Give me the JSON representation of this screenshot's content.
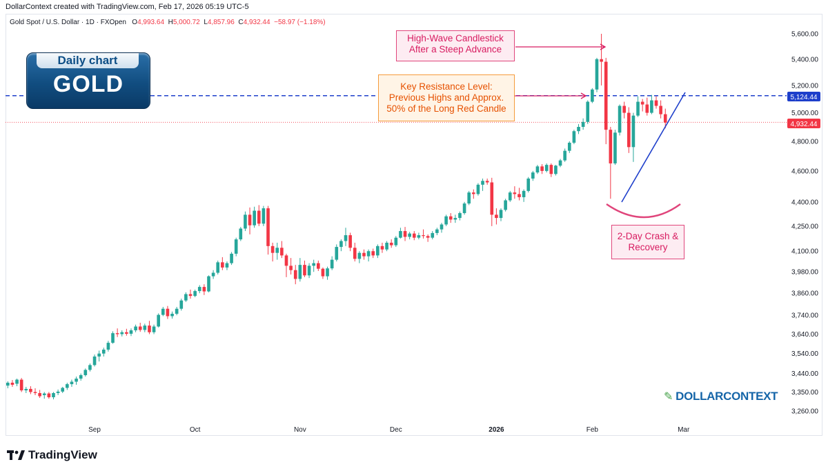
{
  "meta": {
    "created_by": "DollarContext created with TradingView.com, Feb 17, 2026 05:19 UTC-5"
  },
  "header": {
    "symbol": "Gold Spot / U.S. Dollar · 1D · FXOpen",
    "o_label": "O",
    "o_value": "4,993.64",
    "h_label": "H",
    "h_value": "5,000.72",
    "l_label": "L",
    "l_value": "4,857.96",
    "c_label": "C",
    "c_value": "4,932.44",
    "change": "−58.97 (−1.18%)"
  },
  "badge": {
    "top": "Daily chart",
    "main": "GOLD"
  },
  "annotations": {
    "high_wave": "High-Wave Candlestick After a Steep Advance",
    "resistance": "Key Resistance Level: Previous Highs and Approx. 50% of the Long Red Candle",
    "crash": "2-Day Crash & Recovery"
  },
  "price_tags": {
    "resistance": "5,124.44",
    "last": "4,932.44"
  },
  "logos": {
    "tradingview": "TradingView",
    "dollarcontext": "DOLLARCONTEXT"
  },
  "colors": {
    "up": "#26a69a",
    "down": "#f23645",
    "resistance": "#1e3fcb",
    "last": "#f23645",
    "annotation_pink": "#d81b60",
    "annotation_orange": "#e65100"
  },
  "chart_data": {
    "type": "candlestick",
    "title": "Gold Spot / U.S. Dollar · 1D · FXOpen",
    "y_scale": "log",
    "ylim": [
      3180,
      5800
    ],
    "y_ticks": [
      3260,
      3350,
      3440,
      3540,
      3640,
      3740,
      3860,
      3980,
      4100,
      4250,
      4400,
      4600,
      4800,
      5000,
      5200,
      5400,
      5600
    ],
    "y_tick_labels": [
      "3,260.00",
      "3,350.00",
      "3,440.00",
      "3,540.00",
      "3,640.00",
      "3,740.00",
      "3,860.00",
      "3,980.00",
      "4,100.00",
      "4,250.00",
      "4,400.00",
      "4,600.00",
      "4,800.00",
      "5,000.00",
      "5,200.00",
      "5,400.00",
      "5,600.00"
    ],
    "x_month_labels": [
      {
        "label": "Sep",
        "bar": 19
      },
      {
        "label": "Oct",
        "bar": 41
      },
      {
        "label": "Nov",
        "bar": 64
      },
      {
        "label": "Dec",
        "bar": 85
      },
      {
        "label": "2026",
        "bar": 107
      },
      {
        "label": "Feb",
        "bar": 128
      },
      {
        "label": "Mar",
        "bar": 148
      }
    ],
    "x_extent_bars": 170,
    "horizontal_lines": [
      {
        "value": 5124.44,
        "style": "dashed",
        "color": "#1e3fcb"
      },
      {
        "value": 4932.44,
        "style": "dotted",
        "color": "#f23645"
      }
    ],
    "candles": [
      [
        3381,
        3402,
        3368,
        3395
      ],
      [
        3395,
        3408,
        3375,
        3385
      ],
      [
        3390,
        3415,
        3378,
        3410
      ],
      [
        3410,
        3418,
        3350,
        3358
      ],
      [
        3358,
        3375,
        3345,
        3365
      ],
      [
        3365,
        3378,
        3340,
        3350
      ],
      [
        3350,
        3368,
        3335,
        3345
      ],
      [
        3345,
        3360,
        3322,
        3330
      ],
      [
        3335,
        3350,
        3318,
        3343
      ],
      [
        3343,
        3350,
        3318,
        3325
      ],
      [
        3325,
        3350,
        3315,
        3345
      ],
      [
        3345,
        3362,
        3335,
        3352
      ],
      [
        3352,
        3375,
        3345,
        3370
      ],
      [
        3370,
        3395,
        3360,
        3388
      ],
      [
        3388,
        3410,
        3375,
        3400
      ],
      [
        3400,
        3425,
        3385,
        3415
      ],
      [
        3415,
        3440,
        3405,
        3432
      ],
      [
        3432,
        3465,
        3425,
        3458
      ],
      [
        3458,
        3490,
        3450,
        3482
      ],
      [
        3482,
        3535,
        3475,
        3525
      ],
      [
        3525,
        3555,
        3500,
        3540
      ],
      [
        3540,
        3570,
        3525,
        3560
      ],
      [
        3560,
        3605,
        3550,
        3595
      ],
      [
        3595,
        3655,
        3590,
        3645
      ],
      [
        3645,
        3670,
        3625,
        3640
      ],
      [
        3640,
        3660,
        3628,
        3650
      ],
      [
        3650,
        3668,
        3632,
        3642
      ],
      [
        3642,
        3670,
        3630,
        3660
      ],
      [
        3660,
        3690,
        3650,
        3680
      ],
      [
        3680,
        3700,
        3652,
        3662
      ],
      [
        3662,
        3695,
        3650,
        3685
      ],
      [
        3685,
        3710,
        3640,
        3650
      ],
      [
        3650,
        3690,
        3640,
        3680
      ],
      [
        3680,
        3750,
        3675,
        3742
      ],
      [
        3742,
        3785,
        3735,
        3775
      ],
      [
        3775,
        3790,
        3720,
        3735
      ],
      [
        3735,
        3760,
        3722,
        3748
      ],
      [
        3748,
        3785,
        3740,
        3775
      ],
      [
        3775,
        3830,
        3765,
        3820
      ],
      [
        3820,
        3865,
        3812,
        3855
      ],
      [
        3855,
        3880,
        3830,
        3845
      ],
      [
        3845,
        3880,
        3838,
        3872
      ],
      [
        3872,
        3905,
        3860,
        3895
      ],
      [
        3895,
        3910,
        3850,
        3870
      ],
      [
        3870,
        3960,
        3865,
        3955
      ],
      [
        3955,
        3990,
        3940,
        3975
      ],
      [
        3975,
        4045,
        3965,
        4035
      ],
      [
        4035,
        4065,
        3990,
        4005
      ],
      [
        4005,
        4040,
        3990,
        4030
      ],
      [
        4030,
        4095,
        4020,
        4085
      ],
      [
        4085,
        4180,
        4070,
        4170
      ],
      [
        4170,
        4245,
        4160,
        4235
      ],
      [
        4235,
        4340,
        4220,
        4320
      ],
      [
        4320,
        4365,
        4200,
        4255
      ],
      [
        4255,
        4370,
        4240,
        4345
      ],
      [
        4345,
        4380,
        4250,
        4265
      ],
      [
        4265,
        4375,
        4250,
        4360
      ],
      [
        4360,
        4375,
        4080,
        4130
      ],
      [
        4130,
        4150,
        4040,
        4090
      ],
      [
        4090,
        4150,
        4050,
        4120
      ],
      [
        4120,
        4160,
        4060,
        4075
      ],
      [
        4075,
        4085,
        3950,
        4015
      ],
      [
        4015,
        4060,
        3965,
        3990
      ],
      [
        3990,
        4020,
        3910,
        3940
      ],
      [
        3940,
        4060,
        3925,
        4020
      ],
      [
        4020,
        4045,
        3950,
        3960
      ],
      [
        3960,
        4030,
        3945,
        4015
      ],
      [
        4015,
        4050,
        3980,
        4030
      ],
      [
        4030,
        4045,
        3985,
        3998
      ],
      [
        3998,
        4005,
        3940,
        3955
      ],
      [
        3955,
        4010,
        3935,
        4000
      ],
      [
        4000,
        4070,
        3990,
        4050
      ],
      [
        4050,
        4140,
        4040,
        4125
      ],
      [
        4125,
        4170,
        4100,
        4160
      ],
      [
        4160,
        4240,
        4130,
        4195
      ],
      [
        4195,
        4210,
        4100,
        4120
      ],
      [
        4120,
        4150,
        4040,
        4055
      ],
      [
        4055,
        4100,
        4030,
        4090
      ],
      [
        4090,
        4110,
        4050,
        4070
      ],
      [
        4070,
        4110,
        4040,
        4100
      ],
      [
        4100,
        4115,
        4060,
        4075
      ],
      [
        4075,
        4140,
        4060,
        4130
      ],
      [
        4130,
        4150,
        4090,
        4110
      ],
      [
        4110,
        4160,
        4100,
        4150
      ],
      [
        4150,
        4170,
        4120,
        4135
      ],
      [
        4135,
        4190,
        4125,
        4180
      ],
      [
        4180,
        4240,
        4175,
        4220
      ],
      [
        4220,
        4245,
        4160,
        4185
      ],
      [
        4185,
        4215,
        4170,
        4205
      ],
      [
        4205,
        4220,
        4165,
        4180
      ],
      [
        4180,
        4210,
        4170,
        4195
      ],
      [
        4195,
        4230,
        4175,
        4190
      ],
      [
        4190,
        4200,
        4155,
        4180
      ],
      [
        4180,
        4220,
        4170,
        4208
      ],
      [
        4208,
        4240,
        4195,
        4230
      ],
      [
        4230,
        4270,
        4210,
        4260
      ],
      [
        4260,
        4320,
        4250,
        4310
      ],
      [
        4310,
        4330,
        4270,
        4290
      ],
      [
        4290,
        4320,
        4270,
        4300
      ],
      [
        4300,
        4340,
        4285,
        4330
      ],
      [
        4330,
        4400,
        4320,
        4390
      ],
      [
        4390,
        4470,
        4380,
        4460
      ],
      [
        4460,
        4480,
        4420,
        4450
      ],
      [
        4450,
        4520,
        4440,
        4510
      ],
      [
        4510,
        4550,
        4470,
        4535
      ],
      [
        4535,
        4550,
        4510,
        4525
      ],
      [
        4525,
        4555,
        4250,
        4320
      ],
      [
        4320,
        4360,
        4260,
        4300
      ],
      [
        4300,
        4360,
        4280,
        4350
      ],
      [
        4350,
        4420,
        4340,
        4410
      ],
      [
        4410,
        4470,
        4400,
        4460
      ],
      [
        4460,
        4500,
        4420,
        4450
      ],
      [
        4450,
        4490,
        4410,
        4430
      ],
      [
        4430,
        4480,
        4400,
        4470
      ],
      [
        4470,
        4560,
        4460,
        4550
      ],
      [
        4550,
        4600,
        4535,
        4590
      ],
      [
        4590,
        4640,
        4580,
        4630
      ],
      [
        4630,
        4645,
        4580,
        4600
      ],
      [
        4600,
        4650,
        4590,
        4640
      ],
      [
        4640,
        4650,
        4560,
        4580
      ],
      [
        4580,
        4640,
        4570,
        4635
      ],
      [
        4635,
        4680,
        4625,
        4670
      ],
      [
        4670,
        4750,
        4660,
        4735
      ],
      [
        4735,
        4800,
        4720,
        4790
      ],
      [
        4790,
        4880,
        4780,
        4870
      ],
      [
        4870,
        4920,
        4850,
        4900
      ],
      [
        4900,
        4960,
        4880,
        4935
      ],
      [
        4935,
        5090,
        4920,
        5080
      ],
      [
        5080,
        5180,
        5070,
        5170
      ],
      [
        5170,
        5410,
        5150,
        5400
      ],
      [
        5400,
        5600,
        5200,
        5380
      ],
      [
        5380,
        5410,
        4780,
        4880
      ],
      [
        4880,
        4900,
        4420,
        4650
      ],
      [
        4650,
        4880,
        4640,
        4860
      ],
      [
        4860,
        5060,
        4840,
        5050
      ],
      [
        5050,
        5080,
        4960,
        5000
      ],
      [
        5000,
        5040,
        4720,
        4760
      ],
      [
        4760,
        5000,
        4660,
        4980
      ],
      [
        4980,
        5120,
        4970,
        5080
      ],
      [
        5080,
        5100,
        5010,
        5060
      ],
      [
        5060,
        5110,
        4980,
        5000
      ],
      [
        5000,
        5130,
        4990,
        5090
      ],
      [
        5090,
        5120,
        5030,
        5050
      ],
      [
        5050,
        5090,
        4960,
        4990
      ],
      [
        4990,
        5030,
        4890,
        4930
      ]
    ]
  }
}
